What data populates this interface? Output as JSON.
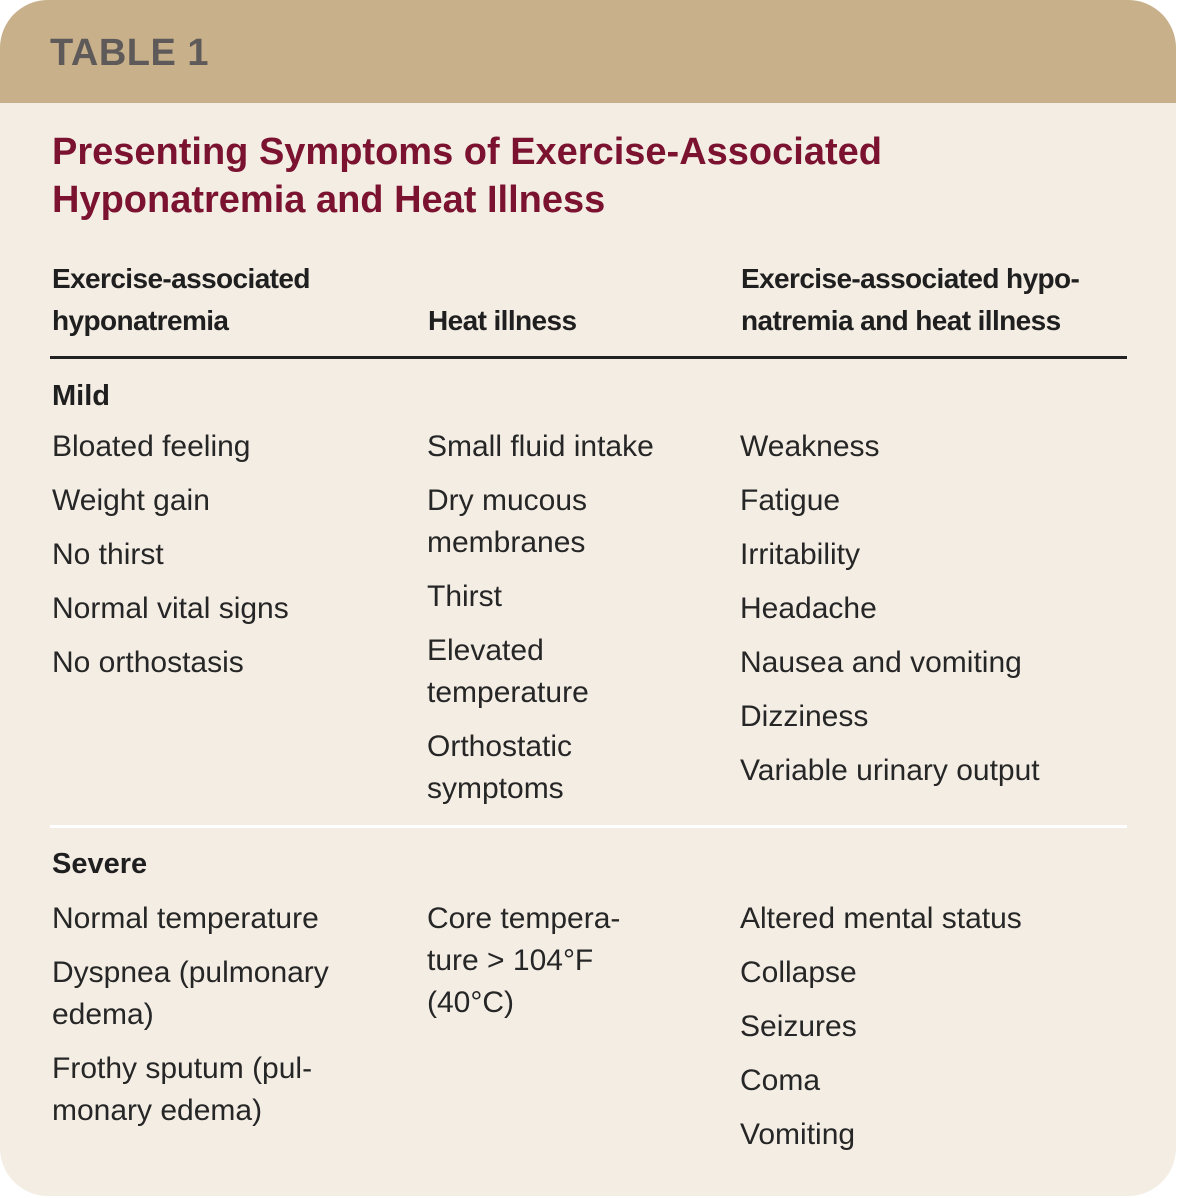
{
  "table_label": "TABLE 1",
  "title": "Presenting Symptoms of Exercise-Associated Hyponatremia and Heat Illness",
  "columns": [
    "Exercise-associated\nhyponatremia",
    "Heat illness",
    "Exercise-associated hypo-\nnatremia and heat illness"
  ],
  "colors": {
    "header_band": "#c8b08a",
    "background": "#f3ede4",
    "title": "#7a1230",
    "label": "#5f5a5a"
  },
  "sections": [
    {
      "name": "Mild",
      "cells": [
        [
          "Bloated feeling",
          "Weight gain",
          "No thirst",
          "Normal vital signs",
          "No orthostasis"
        ],
        [
          "Small fluid intake",
          "Dry mucous\nmembranes",
          "Thirst",
          "Elevated\ntemperature",
          "Orthostatic\nsymptoms"
        ],
        [
          "Weakness",
          "Fatigue",
          "Irritability",
          "Headache",
          "Nausea and vomiting",
          "Dizziness",
          "Variable urinary output"
        ]
      ]
    },
    {
      "name": "Severe",
      "cells": [
        [
          "Normal temperature",
          "Dyspnea (pulmonary\nedema)",
          "Frothy sputum (pul-\nmonary edema)"
        ],
        [
          "Core tempera-\nture > 104°F\n(40°C)"
        ],
        [
          "Altered mental status",
          "Collapse",
          "Seizures",
          "Coma",
          "Vomiting"
        ]
      ]
    }
  ]
}
